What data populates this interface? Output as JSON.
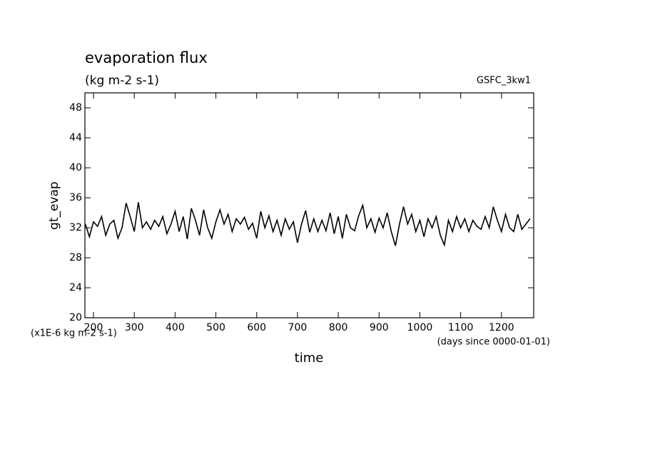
{
  "chart_data": {
    "type": "line",
    "title": "evaporation flux",
    "subtitle": "(kg m-2 s-1)",
    "annotation": "GSFC_3kw1",
    "ylabel": "gt_evap",
    "xlabel": "time",
    "yunits": "(x1E-6 kg m-2 s-1)",
    "xunits": "(days since 0000-01-01)",
    "xlim": [
      179,
      1279
    ],
    "xticks": [
      200,
      300,
      400,
      500,
      600,
      700,
      800,
      900,
      1000,
      1100,
      1200
    ],
    "ylim": [
      20,
      50
    ],
    "yticks": [
      20,
      24,
      28,
      32,
      36,
      40,
      44,
      48
    ],
    "series": [
      {
        "color": "#000000",
        "x": [
          180,
          190,
          200,
          210,
          220,
          230,
          240,
          250,
          260,
          270,
          280,
          290,
          300,
          310,
          320,
          330,
          340,
          350,
          360,
          370,
          380,
          390,
          400,
          410,
          420,
          430,
          440,
          450,
          460,
          470,
          480,
          490,
          500,
          510,
          520,
          530,
          540,
          550,
          560,
          570,
          580,
          590,
          600,
          610,
          620,
          630,
          640,
          650,
          660,
          670,
          680,
          690,
          700,
          710,
          720,
          730,
          740,
          750,
          760,
          770,
          780,
          790,
          800,
          810,
          820,
          830,
          840,
          850,
          860,
          870,
          880,
          890,
          900,
          910,
          920,
          930,
          940,
          950,
          960,
          970,
          980,
          990,
          1000,
          1010,
          1020,
          1030,
          1040,
          1050,
          1060,
          1070,
          1080,
          1090,
          1100,
          1110,
          1120,
          1130,
          1140,
          1150,
          1160,
          1170,
          1180,
          1190,
          1200,
          1210,
          1220,
          1230,
          1240,
          1250,
          1260,
          1270
        ],
        "values": [
          32.5,
          30.8,
          32.8,
          32.2,
          33.5,
          31.0,
          32.5,
          33.0,
          30.6,
          32.0,
          35.3,
          33.5,
          31.5,
          35.4,
          32.0,
          32.8,
          31.8,
          33.0,
          32.2,
          33.5,
          31.2,
          32.5,
          34.2,
          31.5,
          33.5,
          30.5,
          34.6,
          33.0,
          31.0,
          34.4,
          32.0,
          30.6,
          32.8,
          34.4,
          32.5,
          33.8,
          31.5,
          33.2,
          32.5,
          33.4,
          31.8,
          32.6,
          30.6,
          34.2,
          32.0,
          33.6,
          31.5,
          33.0,
          31.0,
          33.2,
          31.8,
          32.8,
          30.0,
          32.5,
          34.3,
          31.4,
          33.2,
          31.5,
          33.0,
          31.6,
          34.0,
          31.2,
          33.5,
          30.6,
          33.8,
          32.0,
          31.6,
          33.6,
          35.0,
          32.0,
          33.2,
          31.4,
          33.3,
          32.0,
          34.0,
          31.5,
          29.6,
          32.5,
          34.8,
          32.5,
          33.8,
          31.5,
          33.0,
          30.8,
          33.2,
          32.0,
          33.5,
          31.0,
          29.7,
          33.0,
          31.5,
          33.5,
          32.0,
          33.2,
          31.5,
          33.0,
          32.2,
          31.8,
          33.5,
          32.0,
          34.8,
          33.0,
          31.5,
          33.8,
          32.0,
          31.5,
          33.8,
          31.8,
          32.5,
          33.2
        ]
      }
    ]
  }
}
